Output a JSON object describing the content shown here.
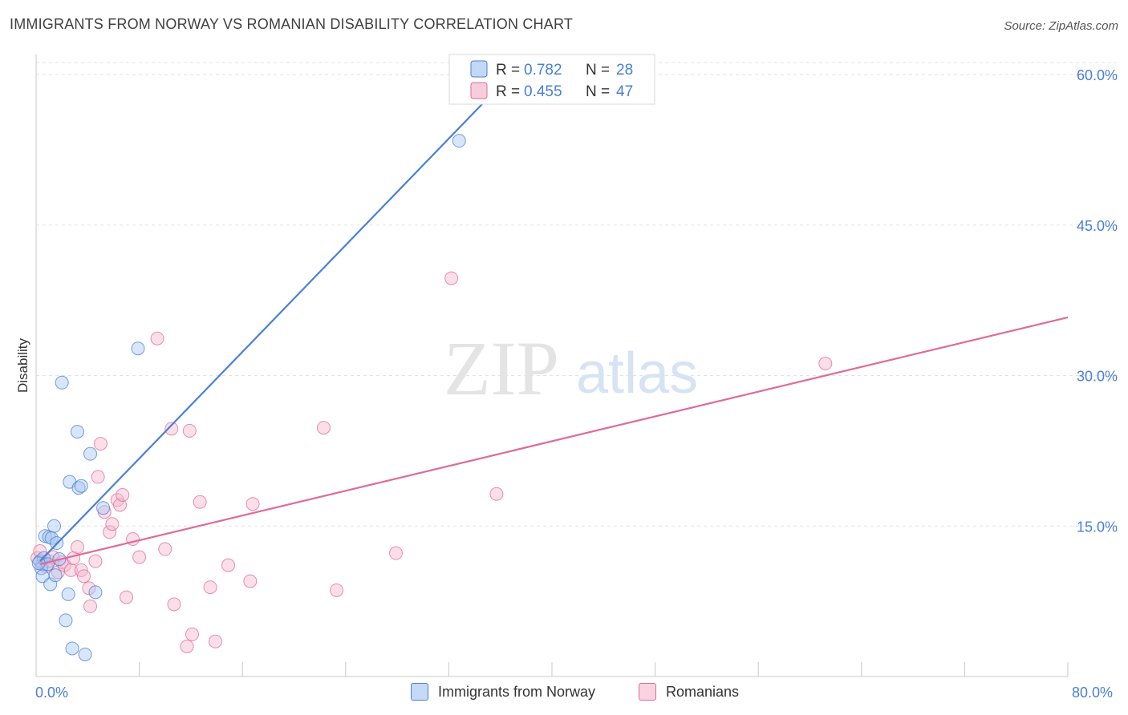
{
  "title": "IMMIGRANTS FROM NORWAY VS ROMANIAN DISABILITY CORRELATION CHART",
  "source": "Source: ZipAtlas.com",
  "watermark": {
    "zip": "ZIP",
    "atlas": "atlas"
  },
  "colors": {
    "blue": "#4a7fd6",
    "blue_fill": "#a9c8f2",
    "pink": "#e06a98",
    "pink_fill": "#f5b8cc",
    "tick": "#4a7fd6"
  },
  "chart_data": {
    "type": "scatter",
    "title": "IMMIGRANTS FROM NORWAY VS ROMANIAN DISABILITY CORRELATION CHART",
    "xlabel": "",
    "ylabel": "Disability",
    "xlim": [
      0,
      80
    ],
    "ylim": [
      0,
      62
    ],
    "x_tick_labels": {
      "left": "0.0%",
      "right": "80.0%"
    },
    "y_ticks": [
      {
        "value": 15,
        "label": "15.0%"
      },
      {
        "value": 30,
        "label": "30.0%"
      },
      {
        "value": 45,
        "label": "45.0%"
      },
      {
        "value": 60,
        "label": "60.0%"
      }
    ],
    "legend": [
      {
        "r_label": "R =",
        "r_value": "0.782",
        "n_label": "N =",
        "n_value": "28"
      },
      {
        "r_label": "R =",
        "r_value": "0.455",
        "n_label": "N =",
        "n_value": "47"
      }
    ],
    "series": [
      {
        "name": "Immigrants from Norway",
        "color": "#4a7fd6",
        "trend": {
          "x0": 0.3,
          "y0": 11.5,
          "x1": 36.8,
          "y1": 60.0
        },
        "points": [
          [
            0.3,
            11.5
          ],
          [
            0.4,
            10.8
          ],
          [
            0.5,
            10.0
          ],
          [
            0.6,
            11.8
          ],
          [
            0.7,
            14.0
          ],
          [
            0.9,
            11.2
          ],
          [
            1.0,
            13.9
          ],
          [
            1.1,
            9.2
          ],
          [
            1.2,
            13.8
          ],
          [
            1.4,
            15.0
          ],
          [
            1.5,
            10.1
          ],
          [
            1.6,
            13.3
          ],
          [
            1.8,
            11.7
          ],
          [
            2.0,
            29.3
          ],
          [
            2.3,
            5.6
          ],
          [
            2.5,
            8.2
          ],
          [
            2.6,
            19.4
          ],
          [
            2.8,
            2.8
          ],
          [
            3.2,
            24.4
          ],
          [
            3.3,
            18.8
          ],
          [
            3.5,
            19.0
          ],
          [
            3.8,
            2.2
          ],
          [
            4.2,
            22.2
          ],
          [
            4.6,
            8.4
          ],
          [
            5.2,
            16.8
          ],
          [
            7.9,
            32.7
          ],
          [
            32.8,
            53.4
          ],
          [
            0.2,
            11.3
          ]
        ]
      },
      {
        "name": "Romanians",
        "color": "#e06a98",
        "trend": {
          "x0": 0.3,
          "y0": 11.2,
          "x1": 80.0,
          "y1": 35.8
        },
        "points": [
          [
            0.1,
            11.8
          ],
          [
            0.3,
            12.5
          ],
          [
            0.5,
            11.2
          ],
          [
            0.8,
            11.0
          ],
          [
            1.0,
            11.5
          ],
          [
            1.3,
            11.9
          ],
          [
            1.7,
            10.4
          ],
          [
            2.0,
            11.4
          ],
          [
            2.2,
            11.1
          ],
          [
            2.7,
            10.6
          ],
          [
            2.9,
            11.8
          ],
          [
            3.2,
            12.9
          ],
          [
            3.5,
            10.6
          ],
          [
            3.7,
            10.0
          ],
          [
            4.1,
            8.8
          ],
          [
            4.2,
            7.0
          ],
          [
            4.6,
            11.5
          ],
          [
            4.8,
            19.9
          ],
          [
            5.0,
            23.2
          ],
          [
            5.3,
            16.4
          ],
          [
            5.7,
            14.4
          ],
          [
            5.9,
            15.2
          ],
          [
            6.3,
            17.6
          ],
          [
            6.5,
            17.1
          ],
          [
            6.7,
            18.1
          ],
          [
            7.0,
            7.9
          ],
          [
            7.5,
            13.7
          ],
          [
            8.0,
            11.9
          ],
          [
            9.4,
            33.7
          ],
          [
            10.0,
            12.7
          ],
          [
            10.5,
            24.7
          ],
          [
            10.7,
            7.2
          ],
          [
            11.7,
            3.0
          ],
          [
            11.9,
            24.5
          ],
          [
            12.1,
            4.2
          ],
          [
            12.7,
            17.4
          ],
          [
            13.5,
            8.9
          ],
          [
            13.9,
            3.5
          ],
          [
            14.9,
            11.1
          ],
          [
            16.6,
            9.5
          ],
          [
            16.8,
            17.2
          ],
          [
            22.3,
            24.8
          ],
          [
            23.3,
            8.6
          ],
          [
            27.9,
            12.3
          ],
          [
            32.2,
            39.7
          ],
          [
            35.7,
            18.2
          ],
          [
            61.2,
            31.2
          ]
        ]
      }
    ]
  }
}
